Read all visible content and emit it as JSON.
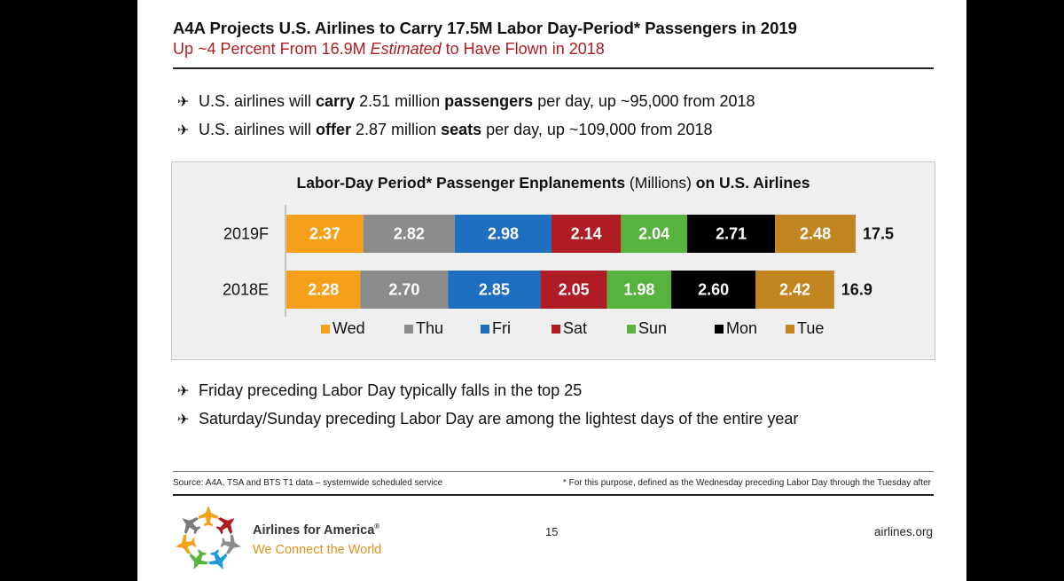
{
  "slide": {
    "title": "A4A Projects U.S. Airlines to Carry 17.5M Labor Day-Period* Passengers in 2019",
    "subtitle_pre": "Up ~4 Percent From 16.9M ",
    "subtitle_em": "Estimated",
    "subtitle_post": " to Have Flown in 2018",
    "bullets_top": [
      {
        "t1": "U.S. airlines will ",
        "b1": "carry",
        "t2": " 2.51 million ",
        "b2": "passengers",
        "t3": " per day, up ~95,000 from 2018"
      },
      {
        "t1": "U.S. airlines will ",
        "b1": "offer",
        "t2": " 2.87 million ",
        "b2": "seats",
        "t3": " per day, up ~109,000 from 2018"
      }
    ],
    "bullets_bottom": [
      "Friday preceding Labor Day typically falls in the top 25",
      "Saturday/Sunday preceding Labor Day are among the lightest days of the entire year"
    ],
    "bullet_icon": "airplane-icon",
    "plane_glyph": "✈",
    "source": "Source: A4A, TSA and BTS T1 data – systemwide scheduled service",
    "footnote": "* For this purpose, defined as the Wednesday preceding Labor Day through the Tuesday after",
    "page_number": "15",
    "site": "airlines.org",
    "brand": {
      "name": "Airlines for America",
      "reg": "®",
      "tagline": "We Connect the World",
      "logo_icon": "airplanes-snowflake-logo"
    }
  },
  "chart_data": {
    "type": "bar",
    "orientation": "horizontal",
    "stacked": true,
    "title_bold_1": "Labor-Day Period* Passenger Enplanements",
    "title_normal": " (Millions) ",
    "title_bold_2": "on U.S. Airlines",
    "categories": [
      "2019F",
      "2018E"
    ],
    "totals": [
      "17.5",
      "16.9"
    ],
    "series": [
      {
        "name": "Wed",
        "color": "#f5a01a",
        "values": [
          2.37,
          2.28
        ]
      },
      {
        "name": "Thu",
        "color": "#8c8c8c",
        "values": [
          2.82,
          2.7
        ]
      },
      {
        "name": "Fri",
        "color": "#1f6fc0",
        "values": [
          2.98,
          2.85
        ]
      },
      {
        "name": "Sat",
        "color": "#b01c24",
        "values": [
          2.14,
          2.05
        ]
      },
      {
        "name": "Sun",
        "color": "#58b33e",
        "values": [
          2.04,
          1.98
        ]
      },
      {
        "name": "Mon",
        "color": "#000000",
        "values": [
          2.71,
          2.6
        ]
      },
      {
        "name": "Tue",
        "color": "#c38520",
        "values": [
          2.48,
          2.42
        ]
      }
    ],
    "value_labels": [
      [
        "2.37",
        "2.82",
        "2.98",
        "2.14",
        "2.04",
        "2.71",
        "2.48"
      ],
      [
        "2.28",
        "2.70",
        "2.85",
        "2.05",
        "1.98",
        "2.60",
        "2.42"
      ]
    ],
    "legend_position": "bottom",
    "grid": false
  }
}
